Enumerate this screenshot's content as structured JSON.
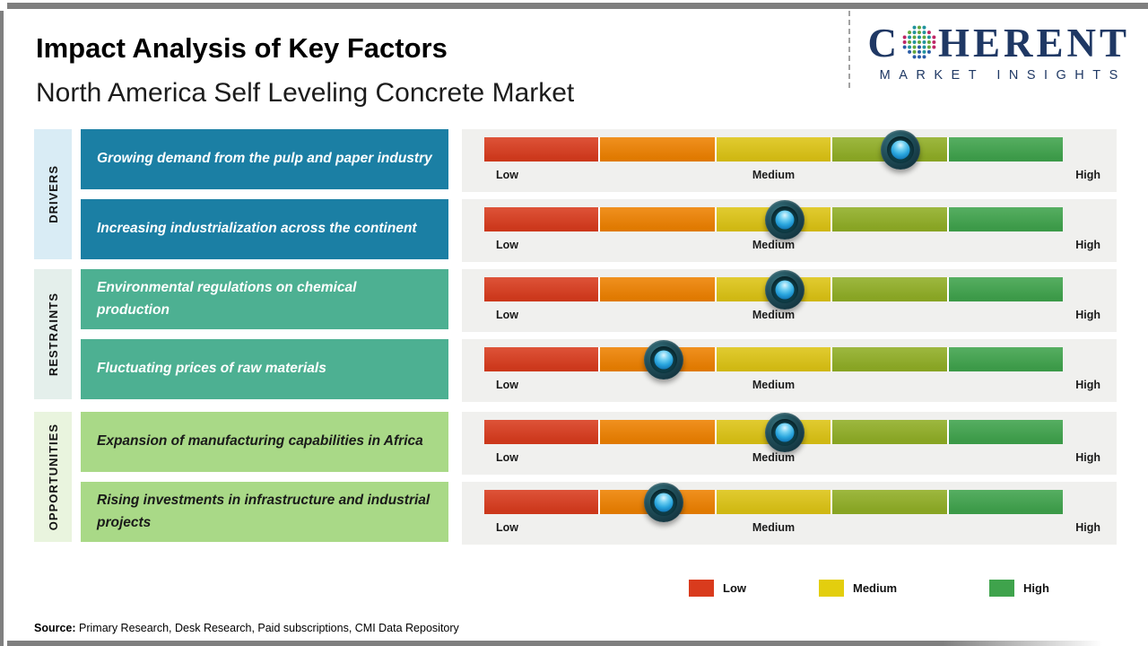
{
  "page": {
    "title": "Impact Analysis of Key Factors",
    "subtitle": "North America Self Leveling Concrete Market",
    "source_label": "Source:",
    "source_text": " Primary Research, Desk Research, Paid subscriptions, CMI Data Repository"
  },
  "logo": {
    "c": "C",
    "rest": "HERENT",
    "tagline": "MARKET INSIGHTS",
    "brand_color": "#1f3864"
  },
  "sections": [
    {
      "label": "DRIVERS",
      "label_bg": "#d9ecf5",
      "box_color": "#1b7fa4",
      "text_color": "#ffffff"
    },
    {
      "label": "RESTRAINTS",
      "label_bg": "#e4efeb",
      "box_color": "#4db092",
      "text_color": "#ffffff"
    },
    {
      "label": "OPPORTUNITIES",
      "label_bg": "#e9f4de",
      "box_color": "#a9d987",
      "text_color": "#1a1a1a"
    }
  ],
  "scale": {
    "low": "Low",
    "medium": "Medium",
    "high": "High"
  },
  "rows": [
    {
      "section": 0,
      "text": "Growing demand from the pulp and paper industry",
      "impact_percent": 72,
      "impact_level": "Medium-High"
    },
    {
      "section": 0,
      "text": "Increasing industrialization across the continent",
      "impact_percent": 52,
      "impact_level": "Medium"
    },
    {
      "section": 1,
      "text": "Environmental regulations on chemical production",
      "impact_percent": 52,
      "impact_level": "Medium"
    },
    {
      "section": 1,
      "text": "Fluctuating prices of raw materials",
      "impact_percent": 31,
      "impact_level": "Low-Medium"
    },
    {
      "section": 2,
      "text": "Expansion of manufacturing capabilities in Africa",
      "impact_percent": 52,
      "impact_level": "Medium"
    },
    {
      "section": 2,
      "text": "Rising investments in infrastructure and industrial projects",
      "impact_percent": 31,
      "impact_level": "Low-Medium"
    }
  ],
  "bars": {
    "segment_colors": [
      "#d93b1d",
      "#ee8100",
      "#ddc414",
      "#90ae25",
      "#3fa34c"
    ],
    "marker_core_color": "#2aa6de",
    "marker_ring_color": "#133540"
  },
  "legend": [
    {
      "label": "Low",
      "color": "#d93b1d"
    },
    {
      "label": "Medium",
      "color": "#e3ce0e"
    },
    {
      "label": "High",
      "color": "#3fa34c"
    }
  ],
  "chart_data": {
    "type": "bar",
    "orientation": "horizontal",
    "title": "Impact Analysis of Key Factors",
    "subtitle": "North America Self Leveling Concrete Market",
    "scale_ticks": [
      "Low",
      "Medium",
      "High"
    ],
    "scale_range_percent": [
      0,
      100
    ],
    "categories": [
      "Growing demand from the pulp and paper industry",
      "Increasing industrialization across the continent",
      "Environmental regulations on chemical production",
      "Fluctuating prices of raw materials",
      "Expansion of manufacturing capabilities in Africa",
      "Rising investments in infrastructure and industrial projects"
    ],
    "groups": [
      "Drivers",
      "Drivers",
      "Restraints",
      "Restraints",
      "Opportunities",
      "Opportunities"
    ],
    "values": [
      72,
      52,
      52,
      31,
      52,
      31
    ],
    "value_unit": "percent along Low-to-High impact scale",
    "impact_levels": [
      "Medium-High",
      "Medium",
      "Medium",
      "Low-Medium",
      "Medium",
      "Low-Medium"
    ],
    "legend": [
      "Low",
      "Medium",
      "High"
    ],
    "legend_position": "bottom-right",
    "grid": false
  }
}
